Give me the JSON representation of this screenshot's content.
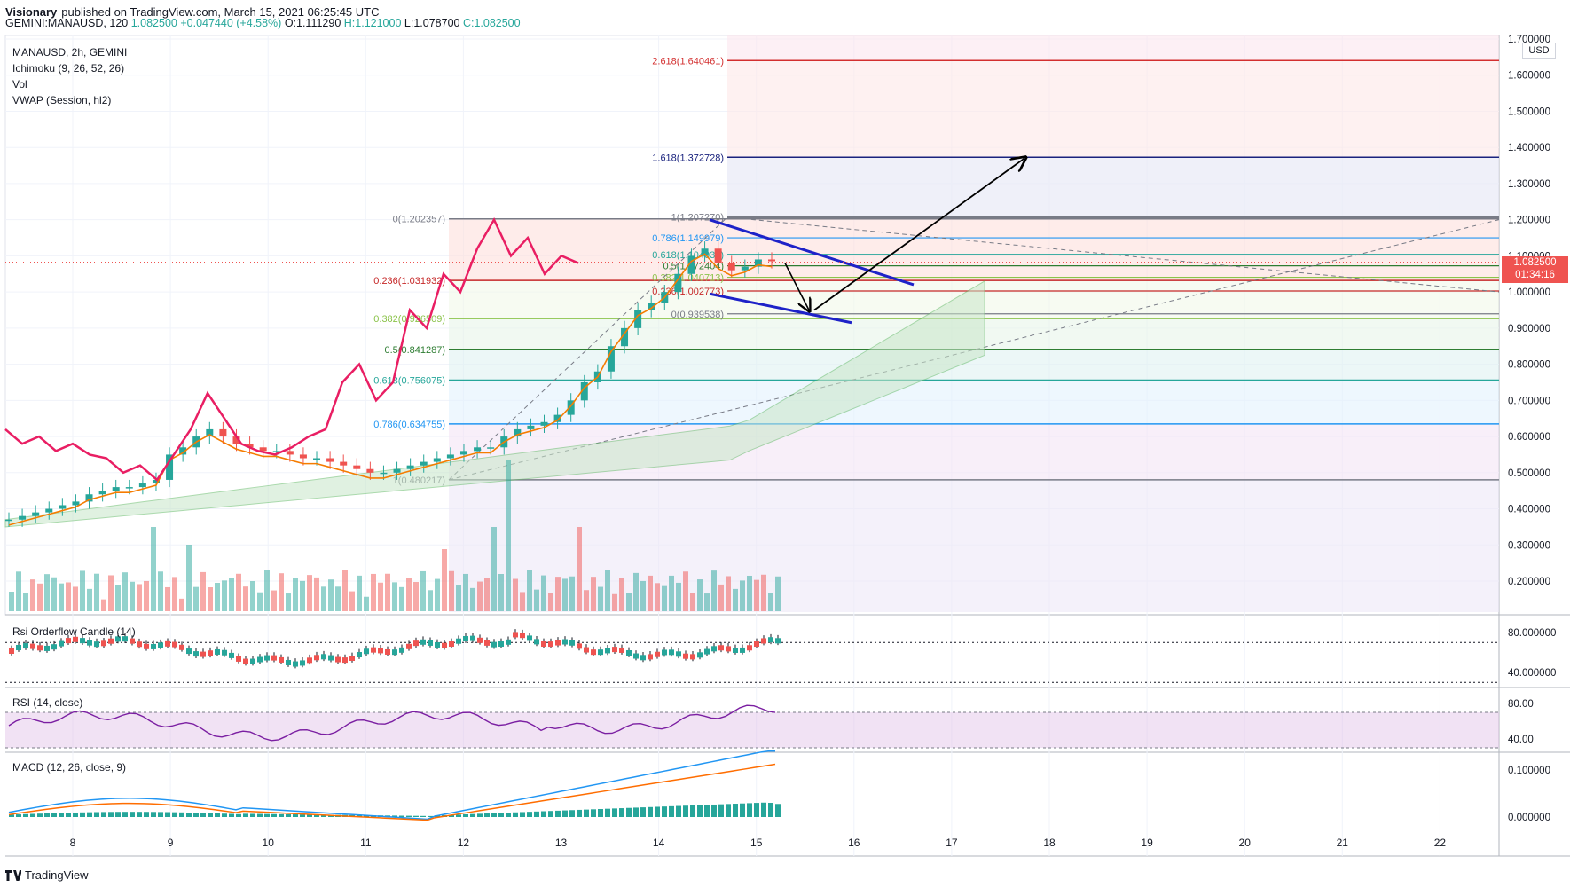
{
  "header": {
    "publisher": "Visionary",
    "published_text": "published on TradingView.com, March 15, 2021 06:25:45 UTC",
    "symbol_line": "GEMINI:MANAUSD, 120",
    "last": "1.082500",
    "change": "+0.047440 (+4.58%)",
    "open": "O:1.111290",
    "high": "H:1.121000",
    "low": "L:1.078700",
    "close": "C:1.082500"
  },
  "legend": {
    "main_title": "MANAUSD, 2h, GEMINI",
    "ichimoku": "Ichimoku (9, 26, 52, 26)",
    "vol": "Vol",
    "vwap": "VWAP (Session, hl2)"
  },
  "price_axis": {
    "currency": "USD",
    "labels": [
      "1.700000",
      "1.600000",
      "1.500000",
      "1.400000",
      "1.300000",
      "1.200000",
      "1.100000",
      "1.000000",
      "0.900000",
      "0.800000",
      "0.700000",
      "0.600000",
      "0.500000",
      "0.400000",
      "0.300000",
      "0.200000"
    ],
    "last_price": "1.082500",
    "countdown": "01:34:16"
  },
  "time_axis": {
    "labels": [
      "8",
      "9",
      "10",
      "11",
      "12",
      "13",
      "14",
      "15",
      "16",
      "17",
      "18",
      "19",
      "20",
      "21",
      "22"
    ]
  },
  "fib_large": [
    {
      "label": "2.618(1.640461)",
      "value": 1.640461,
      "color": "#d32f2f"
    },
    {
      "label": "1.618(1.372728)",
      "value": 1.372728,
      "color": "#1a237e"
    },
    {
      "label": "0(1.202357)",
      "value": 1.202357,
      "color": "#787b86"
    },
    {
      "label": "0.236(1.031932)",
      "value": 1.031932,
      "color": "#c62828"
    },
    {
      "label": "0.382(0.926509)",
      "value": 0.926509,
      "color": "#8bc34a"
    },
    {
      "label": "0.5(0.841287)",
      "value": 0.841287,
      "color": "#2e7d32"
    },
    {
      "label": "0.618(0.756075)",
      "value": 0.756075,
      "color": "#26a69a"
    },
    {
      "label": "0.786(0.634755)",
      "value": 0.634755,
      "color": "#2196f3"
    },
    {
      "label": "1(0.480217)",
      "value": 0.480217,
      "color": "#787b86"
    }
  ],
  "fib_small": [
    {
      "label": "1(1.207270)",
      "value": 1.20727,
      "color": "#787b86"
    },
    {
      "label": "0.786(1.149979)",
      "value": 1.149979,
      "color": "#2196f3"
    },
    {
      "label": "0.618(1.104034)",
      "value": 1.104034,
      "color": "#26a69a"
    },
    {
      "label": "0.5(1.072404)",
      "value": 1.072404,
      "color": "#2e7d32"
    },
    {
      "label": "0.382(1.040713)",
      "value": 1.040713,
      "color": "#8bc34a"
    },
    {
      "label": "0.236(1.002773)",
      "value": 1.002773,
      "color": "#c62828"
    },
    {
      "label": "0(0.939538)",
      "value": 0.939538,
      "color": "#787b86"
    }
  ],
  "panels": {
    "rsi_orderflow": {
      "title": "Rsi Orderflow Candle (14)",
      "labels": [
        "80.000000",
        "40.000000"
      ]
    },
    "rsi": {
      "title": "RSI (14, close)",
      "labels": [
        "80.00",
        "40.00"
      ]
    },
    "macd": {
      "title": "MACD (12, 26, close, 9)",
      "labels": [
        "0.100000",
        "0.000000"
      ]
    }
  },
  "footer": {
    "brand": "TradingView"
  },
  "colors": {
    "up": "#26a69a",
    "down": "#ef5350",
    "rsi_line": "#e91e63",
    "trend": "#1e22c8",
    "arrow": "#000000"
  },
  "chart_data": {
    "type": "candlestick",
    "symbol": "MANAUSD",
    "timeframe": "2h",
    "x_ticks": [
      "8",
      "9",
      "10",
      "11",
      "12",
      "13",
      "14",
      "15",
      "16",
      "17",
      "18",
      "19",
      "20",
      "21",
      "22"
    ],
    "ylim": [
      0.1,
      1.72
    ],
    "close_path": [
      0.37,
      0.38,
      0.39,
      0.4,
      0.41,
      0.42,
      0.44,
      0.45,
      0.46,
      0.46,
      0.47,
      0.48,
      0.55,
      0.57,
      0.6,
      0.62,
      0.6,
      0.58,
      0.57,
      0.56,
      0.56,
      0.55,
      0.54,
      0.54,
      0.53,
      0.52,
      0.51,
      0.5,
      0.5,
      0.51,
      0.52,
      0.53,
      0.54,
      0.55,
      0.56,
      0.57,
      0.57,
      0.6,
      0.62,
      0.63,
      0.64,
      0.66,
      0.7,
      0.75,
      0.78,
      0.85,
      0.9,
      0.95,
      0.97,
      1.0,
      1.05,
      1.1,
      1.12,
      1.08,
      1.06,
      1.07,
      1.09,
      1.085
    ]
  }
}
